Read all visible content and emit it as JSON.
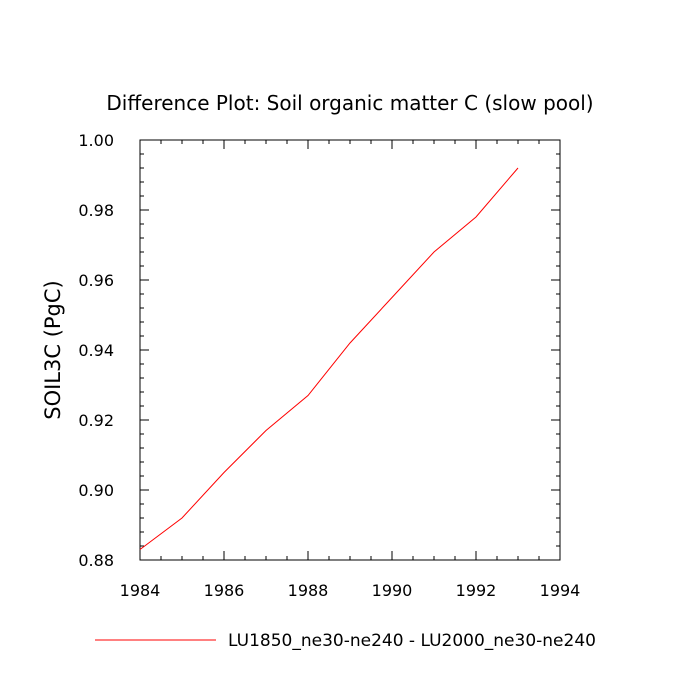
{
  "chart_data": {
    "type": "line",
    "title": "Difference Plot: Soil organic matter C (slow pool)",
    "xlabel": "",
    "ylabel": "SOIL3C  (PgC)",
    "xlim": [
      1984,
      1994
    ],
    "ylim": [
      0.88,
      1.0
    ],
    "x_ticks": [
      "1984",
      "1986",
      "1988",
      "1990",
      "1992",
      "1994"
    ],
    "y_ticks": [
      "0.88",
      "0.90",
      "0.92",
      "0.94",
      "0.96",
      "0.98",
      "1.00"
    ],
    "grid": false,
    "legend_position": "bottom",
    "series": [
      {
        "name": "LU1850_ne30-ne240 - LU2000_ne30-ne240",
        "color": "#ff0000",
        "x": [
          1984,
          1985,
          1986,
          1987,
          1988,
          1989,
          1990,
          1991,
          1992,
          1993
        ],
        "y": [
          0.883,
          0.892,
          0.905,
          0.917,
          0.927,
          0.942,
          0.955,
          0.968,
          0.978,
          0.992
        ]
      }
    ]
  }
}
